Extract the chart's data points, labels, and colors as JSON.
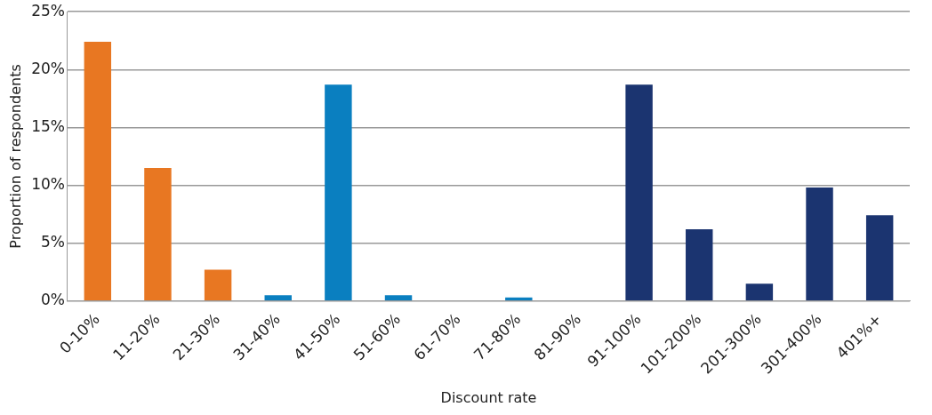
{
  "chart_data": {
    "type": "bar",
    "xlabel": "Discount rate",
    "ylabel": "Proportion of respondents",
    "categories": [
      "0-10%",
      "11-20%",
      "21-30%",
      "31-40%",
      "41-50%",
      "51-60%",
      "61-70%",
      "71-80%",
      "81-90%",
      "91-100%",
      "101-200%",
      "201-300%",
      "301-400%",
      "401%+"
    ],
    "values": [
      22.4,
      11.5,
      2.7,
      0.5,
      18.7,
      0.5,
      0,
      0.3,
      0,
      18.7,
      6.2,
      1.5,
      9.8,
      7.4
    ],
    "colors": [
      "#e87722",
      "#e87722",
      "#e87722",
      "#0a7fc0",
      "#0a7fc0",
      "#0a7fc0",
      "#0a7fc0",
      "#0a7fc0",
      "#0a7fc0",
      "#1b3470",
      "#1b3470",
      "#1b3470",
      "#1b3470",
      "#1b3470"
    ],
    "ylim": [
      0,
      25
    ],
    "yticks": [
      {
        "value": 0,
        "label": "0%"
      },
      {
        "value": 5,
        "label": "5%"
      },
      {
        "value": 10,
        "label": "10%"
      },
      {
        "value": 15,
        "label": "15%"
      },
      {
        "value": 20,
        "label": "20%"
      },
      {
        "value": 25,
        "label": "25%"
      }
    ],
    "grid": "y",
    "legend": false
  }
}
